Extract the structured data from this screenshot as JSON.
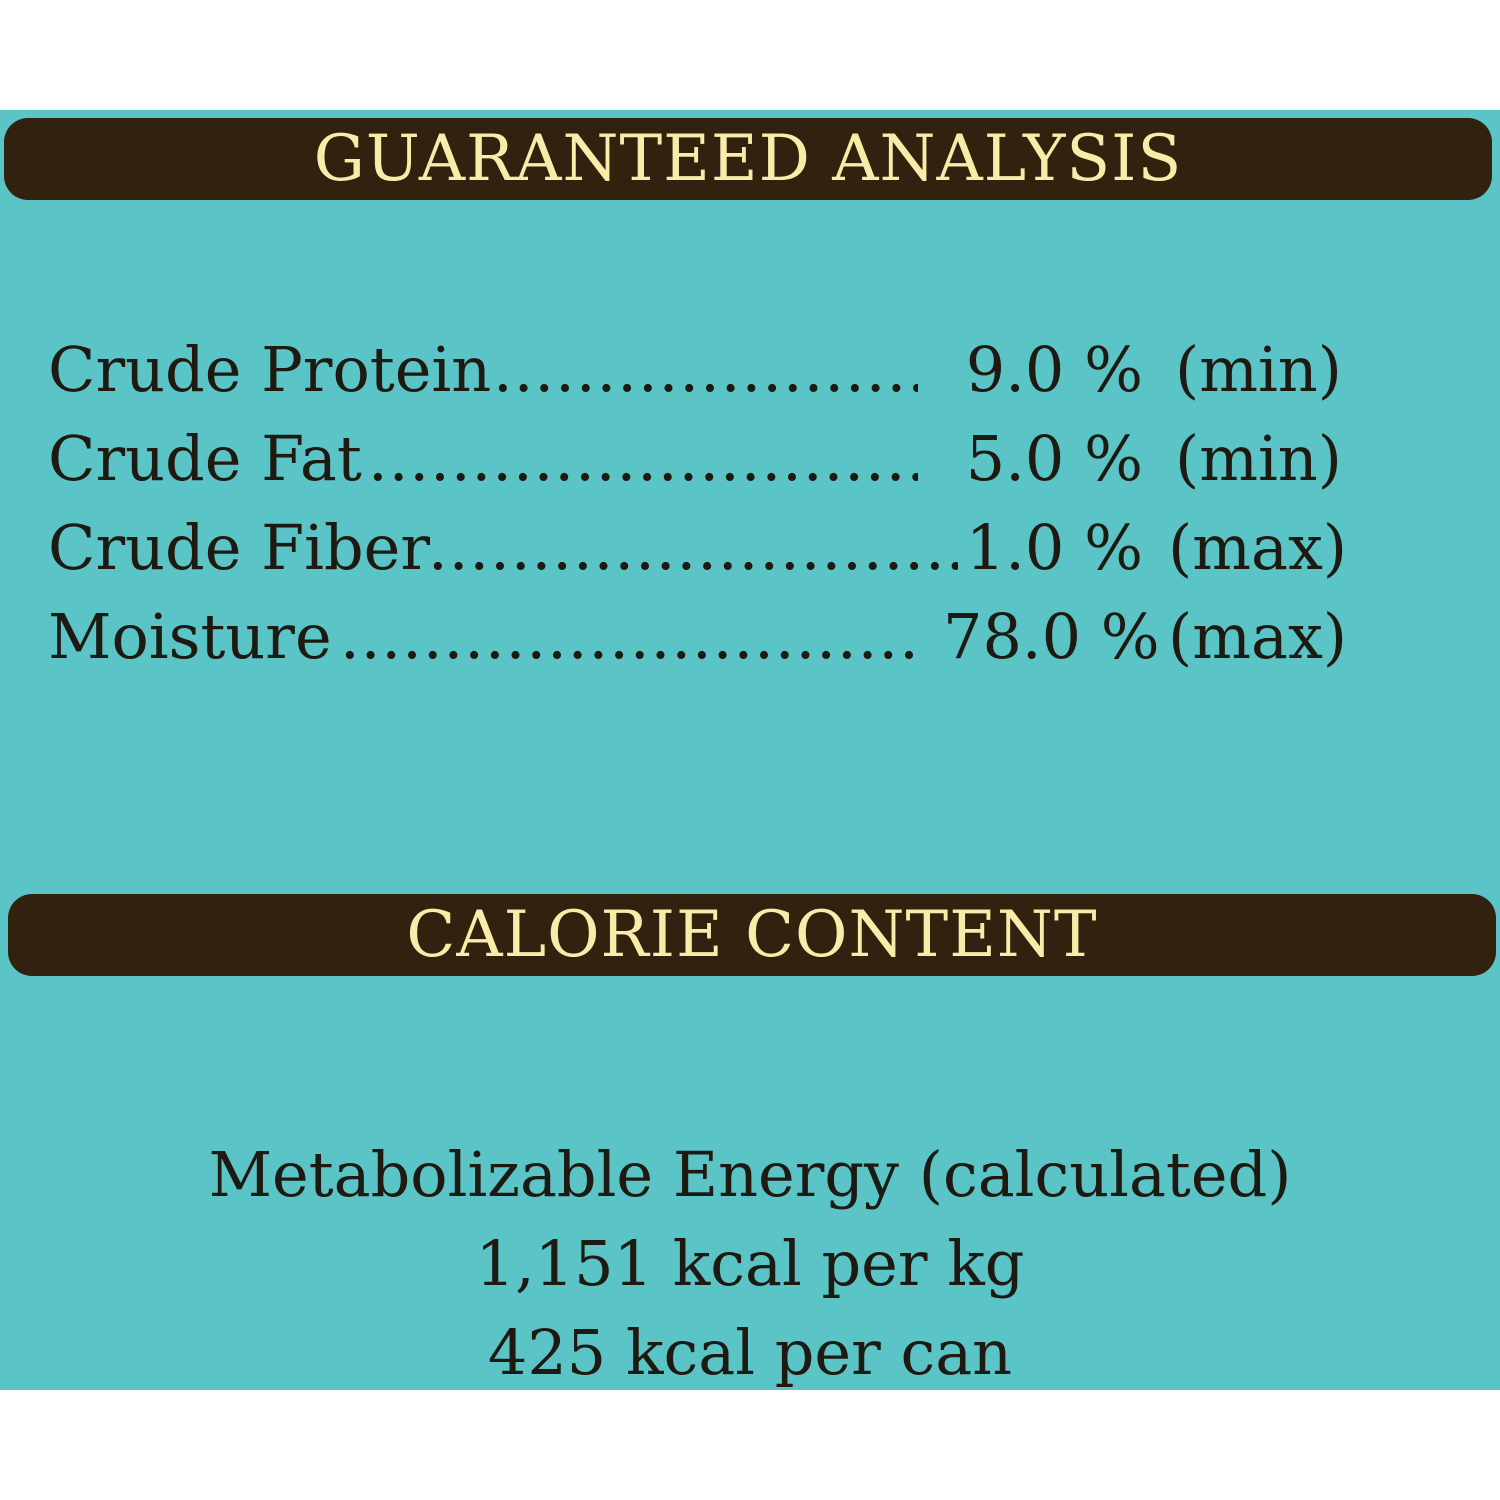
{
  "guaranteed_analysis": {
    "title": "GUARANTEED ANALYSIS",
    "rows": [
      {
        "name": "Crude Protein",
        "value": "9.0 %",
        "qualifier": "(min)"
      },
      {
        "name": "Crude Fat",
        "value": "5.0 %",
        "qualifier": "(min)"
      },
      {
        "name": "Crude Fiber",
        "value": "1.0 %",
        "qualifier": "(max)"
      },
      {
        "name": "Moisture",
        "value": "78.0 %",
        "qualifier": "(max)"
      }
    ]
  },
  "calorie_content": {
    "title": "CALORIE CONTENT",
    "lines": [
      "Metabolizable Energy (calculated)",
      "1,151 kcal per kg",
      "425 kcal per can"
    ]
  },
  "colors": {
    "background": "#5bc4c6",
    "banner": "#31210f",
    "banner_text": "#f8eca8",
    "body_text": "#1e1a12"
  }
}
